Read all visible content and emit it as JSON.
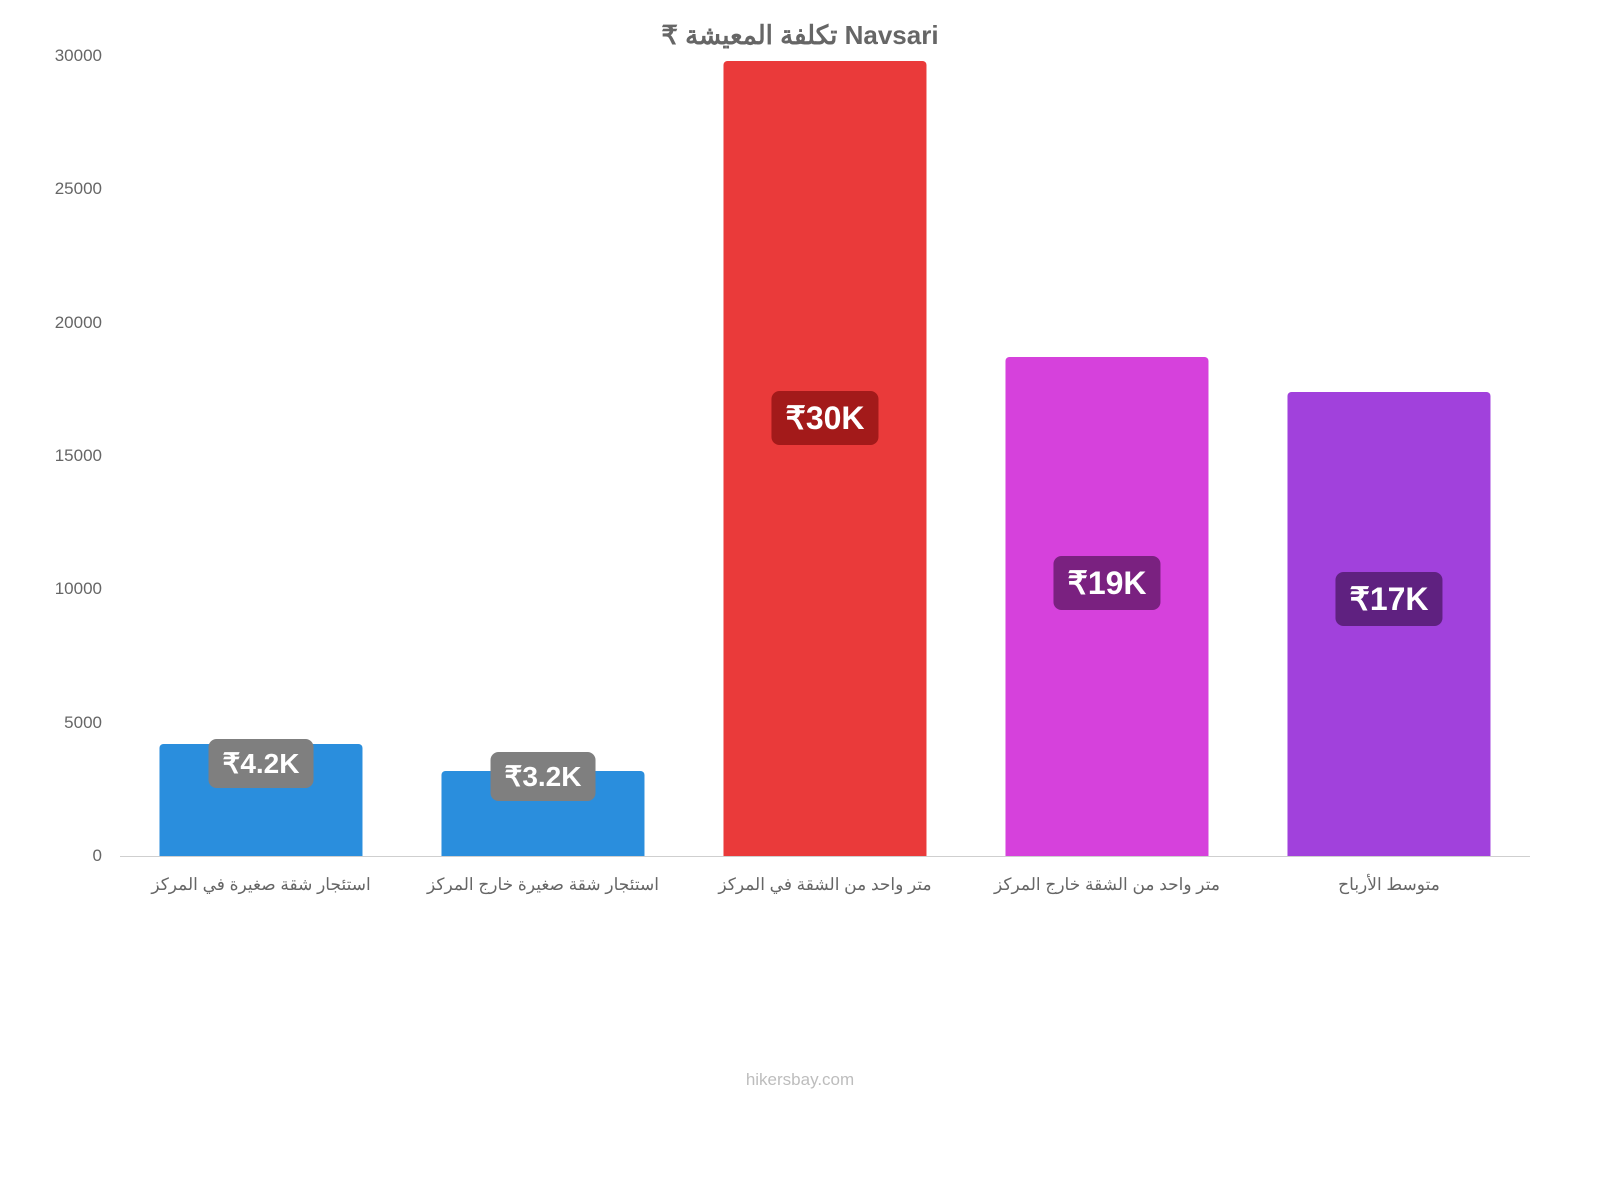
{
  "chart": {
    "type": "bar",
    "title": "₹ تكلفة المعيشة Navsari",
    "title_fontsize": 26,
    "title_color": "#666666",
    "background_color": "#ffffff",
    "axis_label_color": "#666666",
    "axis_label_fontsize": 17,
    "ylim": [
      0,
      30000
    ],
    "yticks": [
      0,
      5000,
      10000,
      15000,
      20000,
      25000,
      30000
    ],
    "bar_width_pct": 72,
    "bars": [
      {
        "category": "استئجار شقة صغيرة في المركز",
        "value": 4200,
        "value_label": "₹4.2K",
        "bar_color": "#2a8edd",
        "badge_bg": "#7f7f7f",
        "badge_text_color": "#ffffff",
        "badge_center_value": 3500,
        "badge_fontsize": 28
      },
      {
        "category": "استئجار شقة صغيرة خارج المركز",
        "value": 3200,
        "value_label": "₹3.2K",
        "bar_color": "#2a8edd",
        "badge_bg": "#7f7f7f",
        "badge_text_color": "#ffffff",
        "badge_center_value": 3000,
        "badge_fontsize": 28
      },
      {
        "category": "متر واحد من الشقة في المركز",
        "value": 29800,
        "value_label": "₹30K",
        "bar_color": "#ea3a3a",
        "badge_bg": "#a31a1a",
        "badge_text_color": "#ffffff",
        "badge_center_value": 16500,
        "badge_fontsize": 32
      },
      {
        "category": "متر واحد من الشقة خارج المركز",
        "value": 18700,
        "value_label": "₹19K",
        "bar_color": "#d641dc",
        "badge_bg": "#7a2180",
        "badge_text_color": "#ffffff",
        "badge_center_value": 10300,
        "badge_fontsize": 32
      },
      {
        "category": "متوسط الأرباح",
        "value": 17400,
        "value_label": "₹17K",
        "bar_color": "#a141dc",
        "badge_bg": "#5f2180",
        "badge_text_color": "#ffffff",
        "badge_center_value": 9700,
        "badge_fontsize": 32
      }
    ],
    "footer": "hikersbay.com",
    "footer_fontsize": 17,
    "footer_color": "#bdbdbd"
  }
}
